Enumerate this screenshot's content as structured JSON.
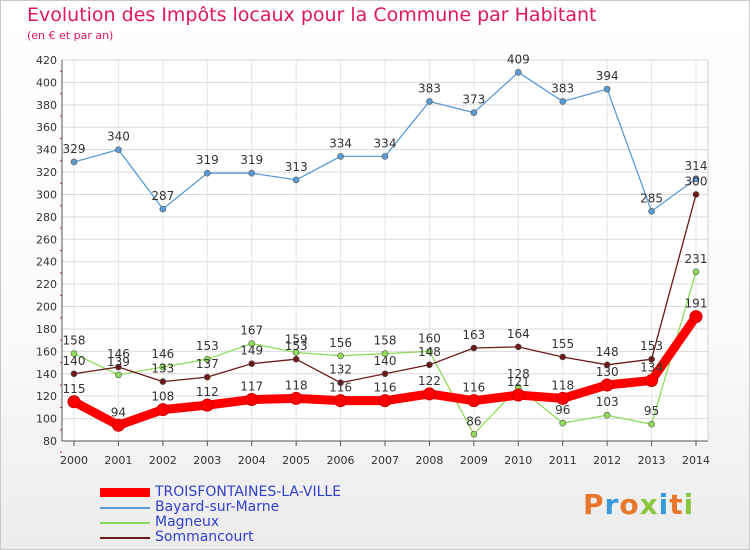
{
  "chart_data": {
    "type": "line",
    "title": "Evolution des Impôts locaux pour la Commune par Habitant",
    "subtitle": "(en € et par an)",
    "xlabel": "",
    "ylabel": "",
    "categories": [
      "2000",
      "2001",
      "2002",
      "2003",
      "2004",
      "2005",
      "2006",
      "2007",
      "2008",
      "2009",
      "2010",
      "2011",
      "2012",
      "2013",
      "2014"
    ],
    "ylim": [
      80,
      420
    ],
    "yticks": [
      80,
      100,
      120,
      140,
      160,
      180,
      200,
      220,
      240,
      260,
      280,
      300,
      320,
      340,
      360,
      380,
      400,
      420
    ],
    "grid": true,
    "legend_position": "bottom-left",
    "series": [
      {
        "name": "TROISFONTAINES-LA-VILLE",
        "color": "#ff0000",
        "values": [
          115,
          94,
          108,
          112,
          117,
          118,
          116,
          116,
          122,
          116,
          121,
          118,
          130,
          134,
          191
        ],
        "labels": [
          "115",
          "94",
          "108",
          "112",
          "117",
          "118",
          "116",
          "116",
          "122",
          "116",
          "121",
          "118",
          "130",
          "134",
          "191"
        ]
      },
      {
        "name": "Bayard-sur-Marne",
        "color": "#5b9bd5",
        "values": [
          329,
          340,
          287,
          319,
          319,
          313,
          334,
          334,
          383,
          373,
          409,
          383,
          394,
          285,
          314
        ],
        "labels": [
          "329",
          "340",
          "287",
          "319",
          "319",
          "313",
          "334",
          "334",
          "383",
          "373",
          "409",
          "383",
          "394",
          "285",
          "314"
        ]
      },
      {
        "name": "Magneux",
        "color": "#8fdc5a",
        "values": [
          158,
          139,
          146,
          153,
          167,
          159,
          156,
          158,
          160,
          86,
          128,
          96,
          103,
          95,
          231
        ],
        "labels": [
          "158",
          "139",
          "146",
          "153",
          "167",
          "159",
          "156",
          "158",
          "160",
          "86",
          "128",
          "96",
          "103",
          "95",
          "231"
        ]
      },
      {
        "name": "Sommancourt",
        "color": "#6b1a1a",
        "values": [
          140,
          146,
          133,
          137,
          149,
          153,
          132,
          140,
          148,
          163,
          164,
          155,
          148,
          153,
          300
        ],
        "labels": [
          "140",
          "146",
          "133",
          "137",
          "149",
          "153",
          "132",
          "140",
          "148",
          "163",
          "164",
          "155",
          "148",
          "153",
          "300"
        ]
      }
    ]
  },
  "branding": {
    "logo_text": "Proxiti",
    "logo_colors": [
      "#e8772e",
      "#3a9ad9",
      "#e8772e",
      "#8cc63f",
      "#3a9ad9",
      "#e8772e",
      "#8cc63f"
    ]
  }
}
